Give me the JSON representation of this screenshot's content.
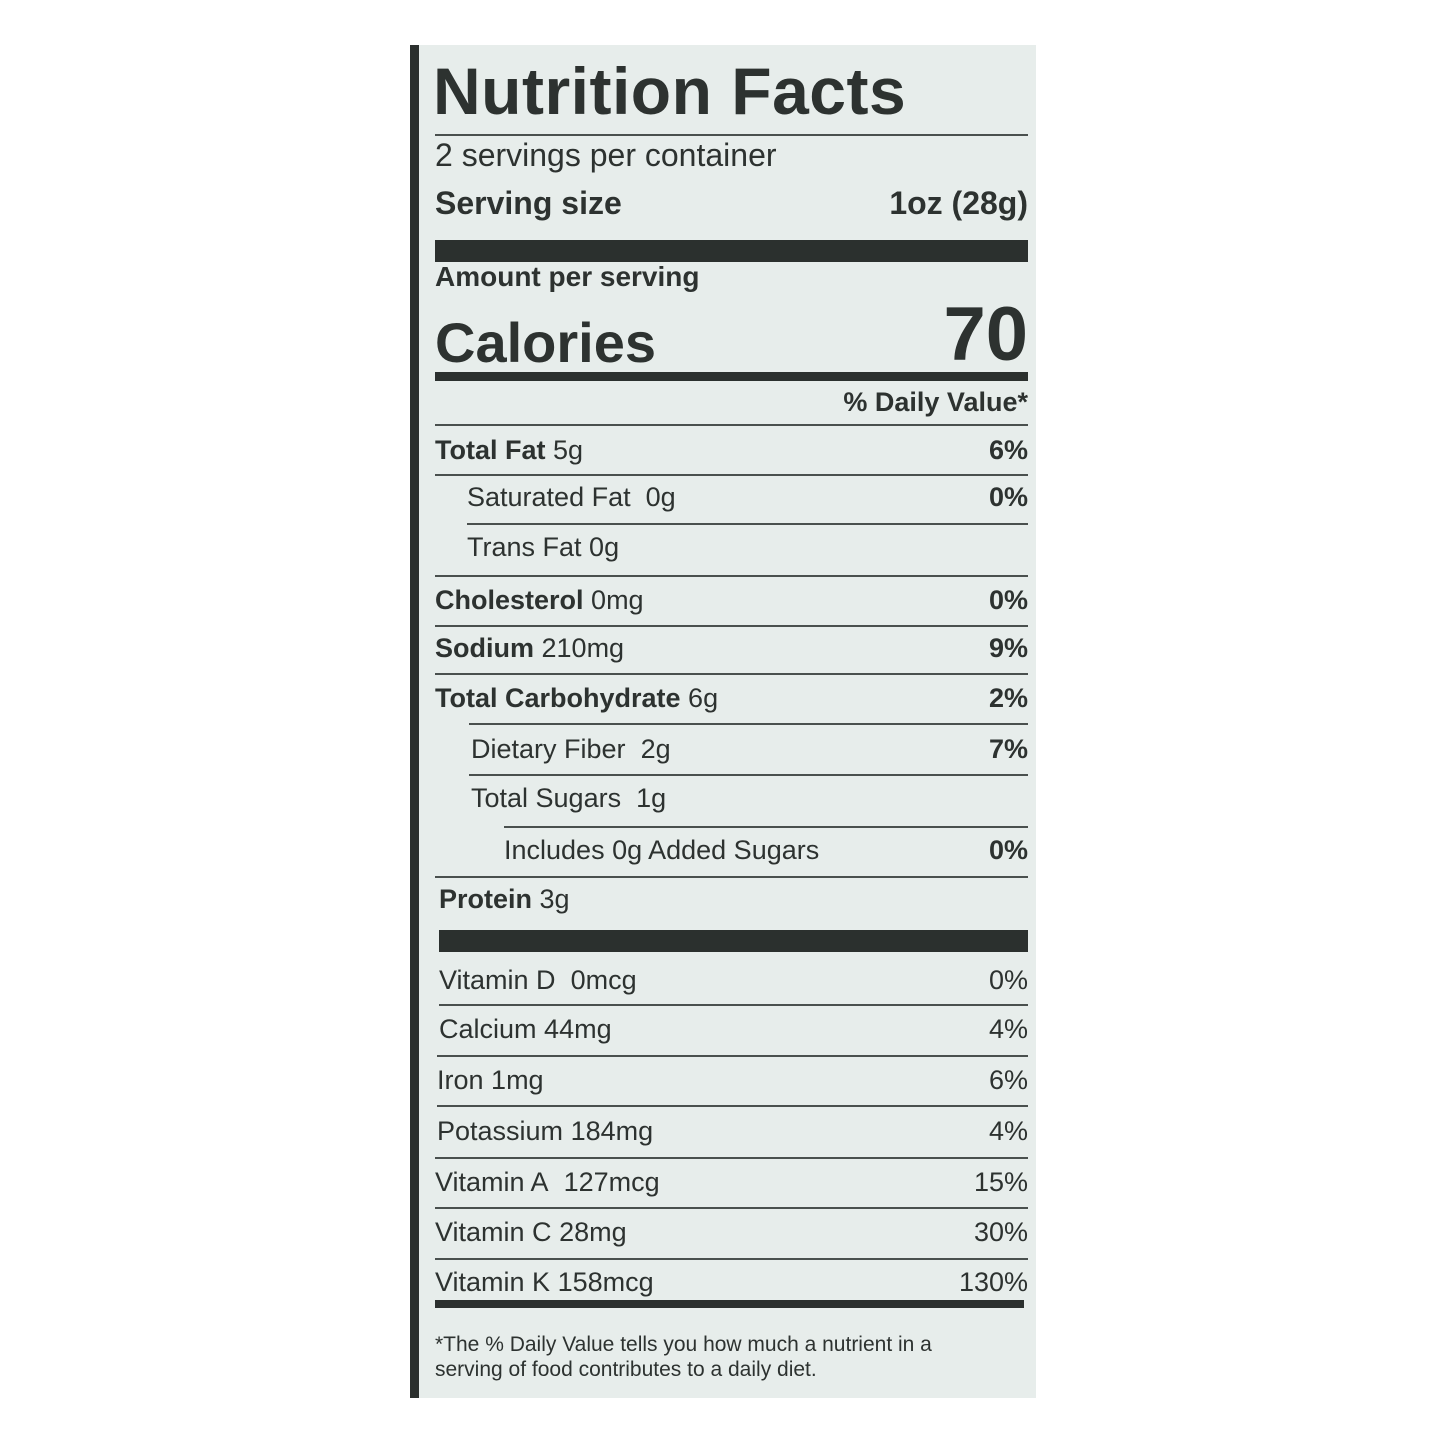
{
  "title": "Nutrition Facts",
  "servings_per_container": "2 servings per container",
  "serving_size_label": "Serving size",
  "serving_size_value": "1oz (28g)",
  "amount_per_serving": "Amount per serving",
  "calories_label": "Calories",
  "calories_value": "70",
  "daily_value_header": "% Daily Value*",
  "nutrients": [
    {
      "name": "Total Fat",
      "amount": "5g",
      "dv": "6%"
    },
    {
      "name": "Saturated Fat",
      "amount": "0g",
      "dv": "0%"
    },
    {
      "name": "Trans Fat",
      "amount": "0g",
      "dv": ""
    },
    {
      "name": "Cholesterol",
      "amount": "0mg",
      "dv": "0%"
    },
    {
      "name": "Sodium",
      "amount": "210mg",
      "dv": "9%"
    },
    {
      "name": "Total Carbohydrate",
      "amount": "6g",
      "dv": "2%"
    },
    {
      "name": "Dietary Fiber",
      "amount": "2g",
      "dv": "7%"
    },
    {
      "name": "Total Sugars",
      "amount": "1g",
      "dv": ""
    },
    {
      "name": "Includes 0g Added Sugars",
      "amount": "",
      "dv": "0%"
    },
    {
      "name": "Protein",
      "amount": "3g",
      "dv": ""
    }
  ],
  "vitamins": [
    {
      "name": "Vitamin D",
      "amount": "0mcg",
      "dv": "0%"
    },
    {
      "name": "Calcium",
      "amount": "44mg",
      "dv": "4%"
    },
    {
      "name": "Iron",
      "amount": "1mg",
      "dv": "6%"
    },
    {
      "name": "Potassium",
      "amount": "184mg",
      "dv": "4%"
    },
    {
      "name": "Vitamin A",
      "amount": "127mcg",
      "dv": "15%"
    },
    {
      "name": "Vitamin C",
      "amount": "28mg",
      "dv": "30%"
    },
    {
      "name": "Vitamin K",
      "amount": "158mcg",
      "dv": "130%"
    }
  ],
  "footnote": "*The % Daily Value tells you how much a nutrient in a serving of food contributes to a daily diet."
}
